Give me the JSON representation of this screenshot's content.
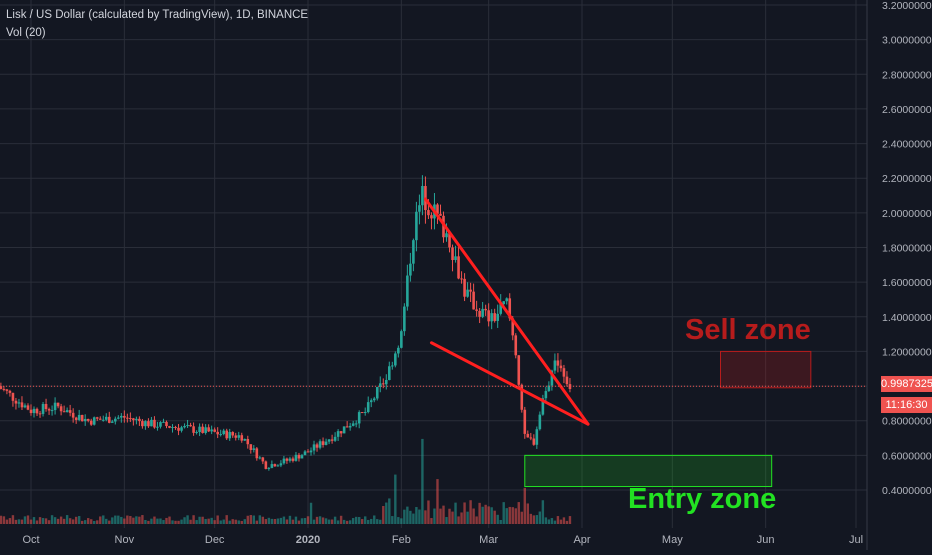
{
  "header": {
    "title": "Lisk / US Dollar (calculated by TradingView), 1D, BINANCE",
    "volume_label": "Vol (20)"
  },
  "price_badge": "0.9987325",
  "countdown_badge": "11:16:30",
  "annotations": {
    "sell_zone": "Sell zone",
    "entry_zone": "Entry zone"
  },
  "colors": {
    "background": "#131722",
    "grid": "#2a2e39",
    "up": "#26a69a",
    "down": "#ef5350",
    "pattern_lines": "#ff1f1f",
    "sell_zone": "#b71c1c",
    "entry_zone": "#22e222",
    "axis_text": "#b2b5be"
  },
  "chart_data": {
    "type": "candlestick",
    "symbol": "Lisk / US Dollar",
    "interval": "1D",
    "exchange": "BINANCE",
    "x_tick_labels": [
      "Oct",
      "Nov",
      "Dec",
      "2020",
      "Feb",
      "Mar",
      "Apr",
      "May",
      "Jun",
      "Jul"
    ],
    "y_tick_labels": [
      "0.4000000",
      "0.6000000",
      "0.8000000",
      "1.0000000",
      "1.2000000",
      "1.4000000",
      "1.6000000",
      "1.8000000",
      "2.0000000",
      "2.2000000",
      "2.4000000",
      "2.6000000",
      "2.8000000",
      "3.0000000",
      "3.2000000"
    ],
    "y_range": [
      0.3,
      3.22
    ],
    "last_price": 0.9987325,
    "price_path": [
      {
        "date": "2019-09-20",
        "close": 1.0
      },
      {
        "date": "2019-10-01",
        "close": 0.86
      },
      {
        "date": "2019-10-10",
        "close": 0.88
      },
      {
        "date": "2019-10-20",
        "close": 0.8
      },
      {
        "date": "2019-11-01",
        "close": 0.82
      },
      {
        "date": "2019-11-10",
        "close": 0.78
      },
      {
        "date": "2019-11-20",
        "close": 0.76
      },
      {
        "date": "2019-12-01",
        "close": 0.73
      },
      {
        "date": "2019-12-10",
        "close": 0.71
      },
      {
        "date": "2019-12-18",
        "close": 0.54
      },
      {
        "date": "2019-12-25",
        "close": 0.57
      },
      {
        "date": "2020-01-01",
        "close": 0.62
      },
      {
        "date": "2020-01-10",
        "close": 0.72
      },
      {
        "date": "2020-01-20",
        "close": 0.85
      },
      {
        "date": "2020-01-27",
        "close": 1.05
      },
      {
        "date": "2020-02-01",
        "close": 1.3
      },
      {
        "date": "2020-02-05",
        "close": 1.9
      },
      {
        "date": "2020-02-08",
        "close": 2.1
      },
      {
        "date": "2020-02-12",
        "close": 2.0
      },
      {
        "date": "2020-02-17",
        "close": 1.85
      },
      {
        "date": "2020-02-22",
        "close": 1.55
      },
      {
        "date": "2020-02-26",
        "close": 1.45
      },
      {
        "date": "2020-03-02",
        "close": 1.38
      },
      {
        "date": "2020-03-07",
        "close": 1.48
      },
      {
        "date": "2020-03-10",
        "close": 1.2
      },
      {
        "date": "2020-03-13",
        "close": 0.7
      },
      {
        "date": "2020-03-16",
        "close": 0.68
      },
      {
        "date": "2020-03-20",
        "close": 1.0
      },
      {
        "date": "2020-03-24",
        "close": 1.15
      },
      {
        "date": "2020-03-28",
        "close": 1.0
      }
    ],
    "volume_spikes": [
      {
        "date": "2020-02-08",
        "relative": 1.0
      },
      {
        "date": "2020-02-13",
        "relative": 0.5
      },
      {
        "date": "2020-03-13",
        "relative": 0.4
      },
      {
        "date": "2020-01-30",
        "relative": 0.55
      },
      {
        "date": "2020-01-02",
        "relative": 0.25
      }
    ],
    "trendlines": [
      {
        "name": "upper",
        "from": {
          "date": "2020-02-09",
          "price": 2.08
        },
        "to": {
          "date": "2020-04-03",
          "price": 0.78
        }
      },
      {
        "name": "lower",
        "from": {
          "date": "2020-02-11",
          "price": 1.25
        },
        "to": {
          "date": "2020-04-03",
          "price": 0.78
        }
      }
    ],
    "zones": [
      {
        "name": "Sell zone",
        "date_from": "2020-05-17",
        "date_to": "2020-06-16",
        "price_from": 0.99,
        "price_to": 1.2
      },
      {
        "name": "Entry zone",
        "date_from": "2020-03-13",
        "date_to": "2020-06-03",
        "price_from": 0.42,
        "price_to": 0.6
      }
    ],
    "grid": true
  }
}
